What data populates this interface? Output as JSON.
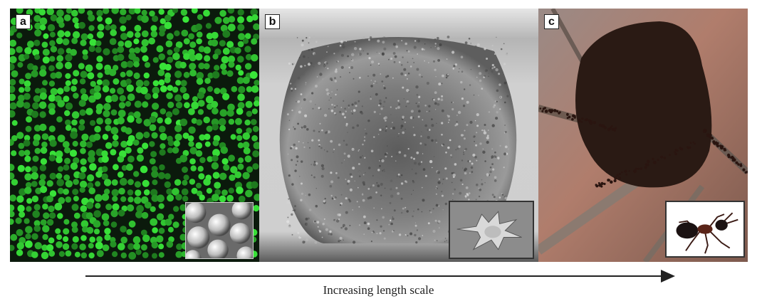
{
  "panels": [
    {
      "label": "a"
    },
    {
      "label": "b"
    },
    {
      "label": "c"
    }
  ],
  "caption": "Increasing length scale",
  "colors": {
    "panel_a_particles": "#3fbf3a",
    "panel_a_background": "#0b1a0c",
    "panel_b_tissue": "#6f6f6f",
    "panel_c_cluster": "#2a1a14",
    "arrow": "#222222"
  },
  "icons": {
    "panel_a_inset": "colloid-spheres-micrograph",
    "panel_b_inset": "single-cell-micrograph",
    "panel_c_inset": "ant-photo"
  }
}
